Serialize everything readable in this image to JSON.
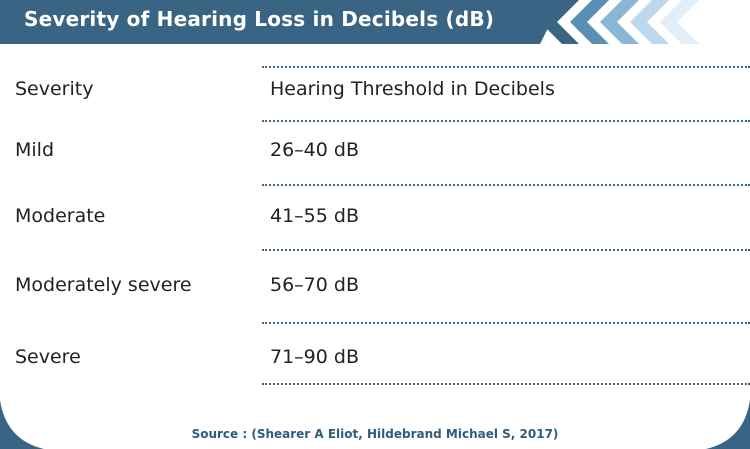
{
  "title": "Severity of Hearing Loss in Decibels (dB)",
  "table": {
    "header": {
      "severity": "Severity",
      "threshold": "Hearing Threshold in Decibels"
    },
    "rows": [
      {
        "severity": "Mild",
        "threshold": "26–40 dB"
      },
      {
        "severity": "Moderate",
        "threshold": "41–55 dB"
      },
      {
        "severity": "Moderately severe",
        "threshold": "56–70 dB"
      },
      {
        "severity": "Severe",
        "threshold": "71–90 dB"
      }
    ]
  },
  "source": "Source : (Shearer A Eliot, Hildebrand Michael S, 2017)",
  "colors": {
    "band": "#3a6483",
    "chevrons": [
      "#3a6483",
      "#5a8fb5",
      "#8bb7d6",
      "#bcd8ec",
      "#e2eff8"
    ],
    "rule": "#3d6480",
    "source_text": "#2f5d7c"
  }
}
